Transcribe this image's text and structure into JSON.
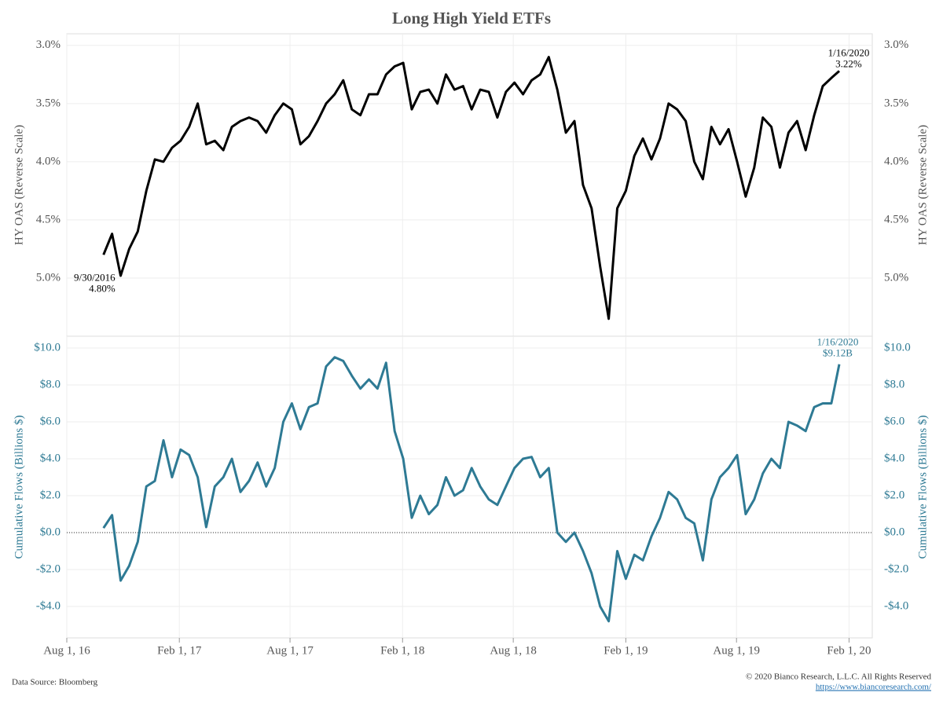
{
  "title": "Long High Yield ETFs",
  "footer": {
    "source": "Data Source: Bloomberg",
    "copyright": "© 2020 Bianco Research, L.L.C. All Rights Reserved",
    "url": "https://www.biancoresearch.com/"
  },
  "chart_data": [
    {
      "type": "line",
      "ylabel": "HY OAS (Reverse Scale)",
      "reverse_y": true,
      "grid": true,
      "xlim": [
        "2016-08-01",
        "2020-03-10"
      ],
      "ylim": [
        2.9,
        5.5
      ],
      "yticks": [
        {
          "value": 3.0,
          "label": "3.0%"
        },
        {
          "value": 3.5,
          "label": "3.5%"
        },
        {
          "value": 4.0,
          "label": "4.0%"
        },
        {
          "value": 4.5,
          "label": "4.5%"
        },
        {
          "value": 5.0,
          "label": "5.0%"
        }
      ],
      "annotations": [
        [
          "9/30/2016",
          "4.80%"
        ],
        [
          "1/16/2020",
          "3.22%"
        ]
      ],
      "x": [
        "2016-09-30",
        "2016-10-14",
        "2016-10-28",
        "2016-11-11",
        "2016-11-25",
        "2016-12-09",
        "2016-12-23",
        "2017-01-06",
        "2017-01-20",
        "2017-02-03",
        "2017-02-17",
        "2017-03-03",
        "2017-03-17",
        "2017-03-31",
        "2017-04-14",
        "2017-04-28",
        "2017-05-12",
        "2017-05-26",
        "2017-06-09",
        "2017-06-23",
        "2017-07-07",
        "2017-07-21",
        "2017-08-04",
        "2017-08-18",
        "2017-09-01",
        "2017-09-15",
        "2017-09-29",
        "2017-10-13",
        "2017-10-27",
        "2017-11-10",
        "2017-11-24",
        "2017-12-08",
        "2017-12-22",
        "2018-01-05",
        "2018-01-19",
        "2018-02-02",
        "2018-02-16",
        "2018-03-02",
        "2018-03-16",
        "2018-03-30",
        "2018-04-13",
        "2018-04-27",
        "2018-05-11",
        "2018-05-25",
        "2018-06-08",
        "2018-06-22",
        "2018-07-06",
        "2018-07-20",
        "2018-08-03",
        "2018-08-17",
        "2018-08-31",
        "2018-09-14",
        "2018-09-28",
        "2018-10-12",
        "2018-10-26",
        "2018-11-09",
        "2018-11-23",
        "2018-12-07",
        "2018-12-21",
        "2019-01-04",
        "2019-01-18",
        "2019-02-01",
        "2019-02-15",
        "2019-03-01",
        "2019-03-15",
        "2019-03-29",
        "2019-04-12",
        "2019-04-26",
        "2019-05-10",
        "2019-05-24",
        "2019-06-07",
        "2019-06-21",
        "2019-07-05",
        "2019-07-19",
        "2019-08-02",
        "2019-08-16",
        "2019-08-30",
        "2019-09-13",
        "2019-09-27",
        "2019-10-11",
        "2019-10-25",
        "2019-11-08",
        "2019-11-22",
        "2019-12-06",
        "2019-12-20",
        "2020-01-03",
        "2020-01-16"
      ],
      "series": [
        {
          "name": "HY OAS",
          "color": "#000000",
          "values": [
            4.8,
            4.62,
            4.98,
            4.75,
            4.6,
            4.25,
            3.98,
            4.0,
            3.88,
            3.82,
            3.7,
            3.5,
            3.85,
            3.82,
            3.9,
            3.7,
            3.65,
            3.62,
            3.65,
            3.75,
            3.6,
            3.5,
            3.55,
            3.85,
            3.78,
            3.65,
            3.5,
            3.42,
            3.3,
            3.55,
            3.6,
            3.42,
            3.42,
            3.25,
            3.18,
            3.15,
            3.55,
            3.4,
            3.38,
            3.5,
            3.25,
            3.38,
            3.35,
            3.55,
            3.38,
            3.4,
            3.62,
            3.4,
            3.32,
            3.42,
            3.3,
            3.25,
            3.1,
            3.38,
            3.75,
            3.65,
            4.2,
            4.4,
            4.9,
            5.35,
            4.4,
            4.25,
            3.95,
            3.8,
            3.98,
            3.8,
            3.5,
            3.55,
            3.65,
            4.0,
            4.15,
            3.7,
            3.85,
            3.72,
            4.0,
            4.3,
            4.05,
            3.62,
            3.7,
            4.05,
            3.75,
            3.65,
            3.9,
            3.6,
            3.35,
            3.28,
            3.22
          ]
        }
      ]
    },
    {
      "type": "line",
      "ylabel": "Cumulative Flows (Billions $)",
      "grid": true,
      "xlim": [
        "2016-08-01",
        "2020-03-10"
      ],
      "ylim": [
        -5.7,
        10.64
      ],
      "yticks": [
        {
          "value": 10,
          "label": "$10.0"
        },
        {
          "value": 8,
          "label": "$8.0"
        },
        {
          "value": 6,
          "label": "$6.0"
        },
        {
          "value": 4,
          "label": "$4.0"
        },
        {
          "value": 2,
          "label": "$2.0"
        },
        {
          "value": 0,
          "label": "$0.0"
        },
        {
          "value": -2,
          "label": "-$2.0"
        },
        {
          "value": -4,
          "label": "-$4.0"
        }
      ],
      "xticks": [
        {
          "value": "2016-08-01",
          "label": "Aug 1, 16"
        },
        {
          "value": "2017-02-01",
          "label": "Feb 1, 17"
        },
        {
          "value": "2017-08-01",
          "label": "Aug 1, 17"
        },
        {
          "value": "2018-02-01",
          "label": "Feb 1, 18"
        },
        {
          "value": "2018-08-01",
          "label": "Aug 1, 18"
        },
        {
          "value": "2019-02-01",
          "label": "Feb 1, 19"
        },
        {
          "value": "2019-08-01",
          "label": "Aug 1, 19"
        },
        {
          "value": "2020-02-01",
          "label": "Feb 1, 20"
        }
      ],
      "annotations": [
        [
          "1/16/2020",
          "$9.12B"
        ]
      ],
      "x": [
        "2016-09-30",
        "2016-10-14",
        "2016-10-28",
        "2016-11-11",
        "2016-11-25",
        "2016-12-09",
        "2016-12-23",
        "2017-01-06",
        "2017-01-20",
        "2017-02-03",
        "2017-02-17",
        "2017-03-03",
        "2017-03-17",
        "2017-03-31",
        "2017-04-14",
        "2017-04-28",
        "2017-05-12",
        "2017-05-26",
        "2017-06-09",
        "2017-06-23",
        "2017-07-07",
        "2017-07-21",
        "2017-08-04",
        "2017-08-18",
        "2017-09-01",
        "2017-09-15",
        "2017-09-29",
        "2017-10-13",
        "2017-10-27",
        "2017-11-10",
        "2017-11-24",
        "2017-12-08",
        "2017-12-22",
        "2018-01-05",
        "2018-01-19",
        "2018-02-02",
        "2018-02-16",
        "2018-03-02",
        "2018-03-16",
        "2018-03-30",
        "2018-04-13",
        "2018-04-27",
        "2018-05-11",
        "2018-05-25",
        "2018-06-08",
        "2018-06-22",
        "2018-07-06",
        "2018-07-20",
        "2018-08-03",
        "2018-08-17",
        "2018-08-31",
        "2018-09-14",
        "2018-09-28",
        "2018-10-12",
        "2018-10-26",
        "2018-11-09",
        "2018-11-23",
        "2018-12-07",
        "2018-12-21",
        "2019-01-04",
        "2019-01-18",
        "2019-02-01",
        "2019-02-15",
        "2019-03-01",
        "2019-03-15",
        "2019-03-29",
        "2019-04-12",
        "2019-04-26",
        "2019-05-10",
        "2019-05-24",
        "2019-06-07",
        "2019-06-21",
        "2019-07-05",
        "2019-07-19",
        "2019-08-02",
        "2019-08-16",
        "2019-08-30",
        "2019-09-13",
        "2019-09-27",
        "2019-10-11",
        "2019-10-25",
        "2019-11-08",
        "2019-11-22",
        "2019-12-06",
        "2019-12-20",
        "2020-01-03",
        "2020-01-16"
      ],
      "series": [
        {
          "name": "Cumulative Flows",
          "color": "#2e7a94",
          "values": [
            0.25,
            0.95,
            -2.6,
            -1.8,
            -0.5,
            2.5,
            2.8,
            5.0,
            3.0,
            4.5,
            4.2,
            3.0,
            0.3,
            2.5,
            3.0,
            4.0,
            2.2,
            2.8,
            3.8,
            2.5,
            3.5,
            6.0,
            7.0,
            5.6,
            6.8,
            7.0,
            9.0,
            9.5,
            9.3,
            8.5,
            7.8,
            8.3,
            7.8,
            9.2,
            5.5,
            4.0,
            0.8,
            2.0,
            1.0,
            1.5,
            3.0,
            2.0,
            2.3,
            3.5,
            2.5,
            1.8,
            1.5,
            2.5,
            3.5,
            4.0,
            4.1,
            3.0,
            3.5,
            0.0,
            -0.5,
            0.0,
            -1.0,
            -2.2,
            -4.0,
            -4.8,
            -1.0,
            -2.5,
            -1.2,
            -1.5,
            -0.2,
            0.8,
            2.2,
            1.8,
            0.8,
            0.5,
            -1.5,
            1.8,
            3.0,
            3.5,
            4.2,
            1.0,
            1.8,
            3.2,
            4.0,
            3.5,
            6.0,
            5.8,
            5.5,
            6.8,
            7.0,
            7.0,
            9.12
          ]
        }
      ]
    }
  ]
}
